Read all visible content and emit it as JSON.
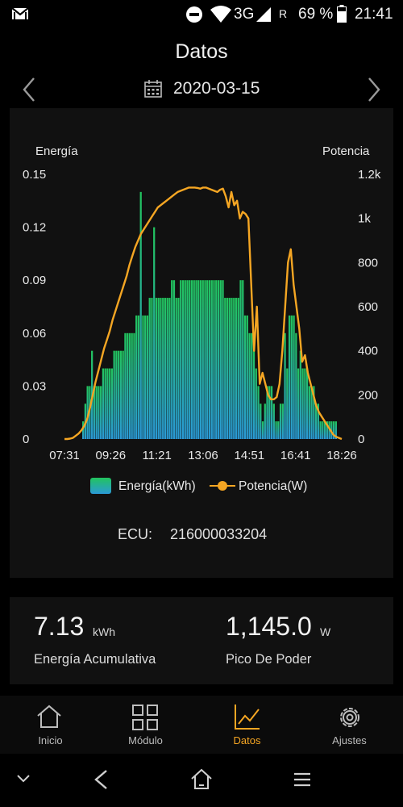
{
  "status_bar": {
    "network": "3G",
    "roaming": "R",
    "battery": "69 %",
    "time": "21:41",
    "icons": [
      "gmail-icon",
      "do-not-disturb-icon",
      "wifi-icon",
      "signal-icon",
      "battery-icon"
    ]
  },
  "header": {
    "title": "Datos",
    "date": "2020-03-15",
    "icons": [
      "chevron-left-icon",
      "calendar-icon",
      "chevron-right-icon"
    ]
  },
  "chart": {
    "left_axis_title": "Energía",
    "right_axis_title": "Potencia",
    "legend_energy": "Energía(kWh)",
    "legend_power": "Potencia(W)",
    "ecu_label": "ECU:",
    "ecu_value": "216000033204"
  },
  "chart_data": {
    "type": "bar",
    "x_tick_labels": [
      "07:31",
      "09:26",
      "11:21",
      "13:06",
      "14:51",
      "16:41",
      "18:26"
    ],
    "left_axis": {
      "label": "Energía",
      "ticks": [
        "0",
        "0.03",
        "0.06",
        "0.09",
        "0.12",
        "0.15"
      ],
      "ylim": [
        0,
        0.15
      ]
    },
    "right_axis": {
      "label": "Potencia",
      "ticks": [
        "0",
        "200",
        "400",
        "600",
        "800",
        "1k",
        "1.2k"
      ],
      "ylim": [
        0,
        1200
      ]
    },
    "grid": false,
    "legend_position": "bottom",
    "colors": {
      "energy_top": "#22c45e",
      "energy_bottom": "#2a9ad6",
      "power": "#f5a623"
    },
    "series": [
      {
        "name": "Energía(kWh)",
        "kind": "bar",
        "axis": "left",
        "values": [
          0,
          0,
          0,
          0,
          0,
          0,
          0,
          0,
          0.01,
          0.02,
          0.03,
          0.03,
          0.05,
          0.03,
          0.03,
          0.03,
          0.03,
          0.04,
          0.04,
          0.04,
          0.04,
          0.04,
          0.05,
          0.05,
          0.05,
          0.05,
          0.05,
          0.06,
          0.06,
          0.06,
          0.06,
          0.06,
          0.07,
          0.07,
          0.14,
          0.07,
          0.07,
          0.07,
          0.08,
          0.08,
          0.12,
          0.08,
          0.08,
          0.08,
          0.08,
          0.08,
          0.08,
          0.08,
          0.09,
          0.09,
          0.08,
          0.08,
          0.09,
          0.09,
          0.09,
          0.09,
          0.09,
          0.09,
          0.09,
          0.09,
          0.09,
          0.09,
          0.09,
          0.09,
          0.09,
          0.09,
          0.09,
          0.09,
          0.09,
          0.09,
          0.09,
          0.09,
          0.08,
          0.08,
          0.08,
          0.08,
          0.08,
          0.08,
          0.08,
          0.09,
          0.09,
          0.07,
          0.07,
          0.06,
          0.06,
          0.05,
          0.04,
          0.03,
          0.02,
          0.01,
          0.02,
          0.03,
          0.03,
          0.03,
          0.02,
          0.01,
          0.01,
          0.02,
          0.02,
          0.06,
          0.04,
          0.07,
          0.07,
          0.07,
          0.06,
          0.04,
          0.05,
          0.04,
          0.04,
          0.04,
          0.03,
          0.03,
          0.03,
          0.02,
          0.02,
          0.01,
          0.01,
          0.01,
          0.01,
          0.01,
          0.01,
          0.01,
          0.01,
          0,
          0
        ]
      },
      {
        "name": "Potencia(W)",
        "kind": "line",
        "axis": "right",
        "values": [
          0,
          0,
          2,
          5,
          15,
          25,
          40,
          60,
          90,
          140,
          200,
          260,
          310,
          360,
          410,
          450,
          490,
          540,
          580,
          620,
          660,
          700,
          740,
          790,
          830,
          870,
          900,
          930,
          950,
          970,
          990,
          1010,
          1030,
          1050,
          1060,
          1070,
          1080,
          1090,
          1100,
          1110,
          1120,
          1125,
          1130,
          1135,
          1140,
          1140,
          1140,
          1138,
          1135,
          1140,
          1140,
          1135,
          1130,
          1125,
          1120,
          1130,
          1135,
          1100,
          1050,
          1120,
          1060,
          1080,
          1000,
          1030,
          1020,
          1000,
          700,
          400,
          600,
          250,
          300,
          250,
          200,
          180,
          180,
          190,
          250,
          400,
          600,
          800,
          860,
          700,
          600,
          500,
          350,
          380,
          300,
          250,
          200,
          150,
          120,
          100,
          80,
          60,
          40,
          20,
          10,
          5,
          0
        ]
      }
    ]
  },
  "stats": {
    "energy_value": "7.13",
    "energy_unit": "kWh",
    "energy_label": "Energía Acumulativa",
    "peak_value": "1,145.0",
    "peak_unit": "W",
    "peak_label": "Pico De Poder"
  },
  "tabs": [
    {
      "label": "Inicio",
      "icon": "home-icon"
    },
    {
      "label": "Módulo",
      "icon": "grid-icon"
    },
    {
      "label": "Datos",
      "icon": "line-chart-icon"
    },
    {
      "label": "Ajustes",
      "icon": "gear-icon"
    }
  ],
  "active_tab": "Datos",
  "nav_icons": [
    "chevron-down-icon",
    "back-icon",
    "home-outline-icon",
    "menu-icon"
  ]
}
